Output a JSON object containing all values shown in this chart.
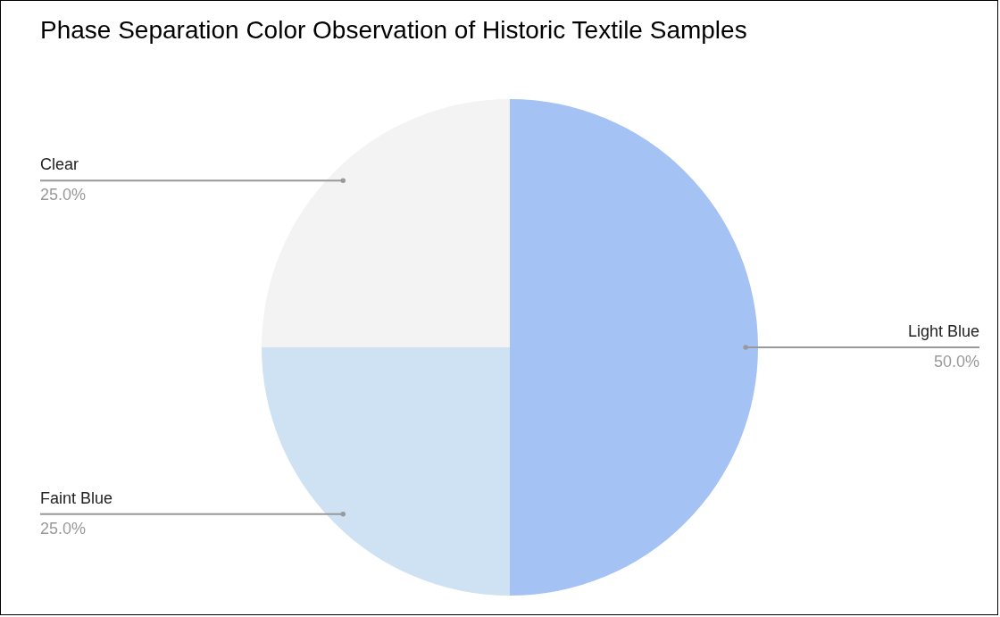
{
  "chart_data": {
    "type": "pie",
    "title": "Phase Separation Color Observation of Historic Textile Samples",
    "categories": [
      "Light Blue",
      "Faint Blue",
      "Clear"
    ],
    "values": [
      50,
      25,
      25
    ],
    "colors": [
      "#a4c2f4",
      "#cfe2f3",
      "#f3f3f3"
    ],
    "value_labels": [
      "50.0%",
      "25.0%",
      "25.0%"
    ]
  }
}
